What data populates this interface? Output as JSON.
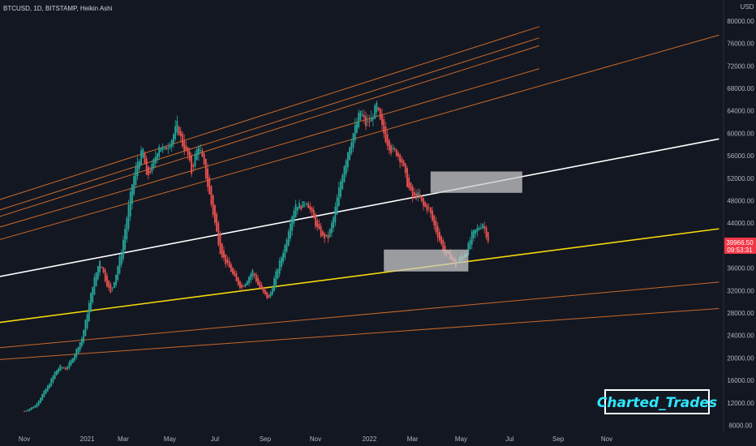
{
  "header": {
    "symbol": "BTCUSD, 1D, BITSTAMP, Heikin Ashi"
  },
  "currency": "USD",
  "current_price": {
    "value": "39966.50",
    "countdown": "09:53:31",
    "color": "#f23645"
  },
  "watermark": "Charted_Trades",
  "colors": {
    "up": "#26a69a",
    "down": "#ef5350",
    "bg": "#131722",
    "orange": "#c96a2a",
    "white": "#ffffff",
    "yellow": "#f5d90a",
    "zone": "#c9c9c9"
  },
  "chart_data": {
    "type": "candlestick",
    "chart_style": "Heikin Ashi",
    "ylim": [
      7500,
      81000
    ],
    "y_ticks": [
      "80000.00",
      "76000.00",
      "72000.00",
      "68000.00",
      "64000.00",
      "60000.00",
      "56000.00",
      "52000.00",
      "48000.00",
      "44000.00",
      "40000.00",
      "36000.00",
      "32000.00",
      "28000.00",
      "24000.00",
      "20000.00",
      "16000.00",
      "12000.00",
      "8000.00"
    ],
    "x_ticks": [
      "Nov",
      "2021",
      "Mar",
      "May",
      "Jul",
      "Sep",
      "Nov",
      "2022",
      "Mar",
      "May",
      "Jul",
      "Sep",
      "Nov"
    ],
    "price_path": [
      [
        0,
        10500
      ],
      [
        6,
        11500
      ],
      [
        10,
        13500
      ],
      [
        14,
        15500
      ],
      [
        17,
        17500
      ],
      [
        20,
        18500
      ],
      [
        23,
        18000
      ],
      [
        26,
        19500
      ],
      [
        29,
        21500
      ],
      [
        32,
        23500
      ],
      [
        35,
        28000
      ],
      [
        38,
        33000
      ],
      [
        42,
        37500
      ],
      [
        45,
        34000
      ],
      [
        48,
        31500
      ],
      [
        51,
        35000
      ],
      [
        54,
        39000
      ],
      [
        57,
        45000
      ],
      [
        60,
        51000
      ],
      [
        63,
        55000
      ],
      [
        66,
        57000
      ],
      [
        68,
        52000
      ],
      [
        71,
        54000
      ],
      [
        75,
        58000
      ],
      [
        78,
        57000
      ],
      [
        82,
        59000
      ],
      [
        85,
        61500
      ],
      [
        88,
        58000
      ],
      [
        91,
        56000
      ],
      [
        93,
        53000
      ],
      [
        95,
        56000
      ],
      [
        97,
        58000
      ],
      [
        100,
        54000
      ],
      [
        103,
        49000
      ],
      [
        106,
        44000
      ],
      [
        109,
        39000
      ],
      [
        112,
        37000
      ],
      [
        115,
        35500
      ],
      [
        118,
        33500
      ],
      [
        121,
        32500
      ],
      [
        124,
        34000
      ],
      [
        127,
        35500
      ],
      [
        130,
        33000
      ],
      [
        133,
        31500
      ],
      [
        136,
        30500
      ],
      [
        139,
        34000
      ],
      [
        142,
        37000
      ],
      [
        145,
        40000
      ],
      [
        148,
        44500
      ],
      [
        151,
        47500
      ],
      [
        154,
        47000
      ],
      [
        157,
        48000
      ],
      [
        160,
        45500
      ],
      [
        163,
        43000
      ],
      [
        166,
        41500
      ],
      [
        169,
        41500
      ],
      [
        172,
        45000
      ],
      [
        175,
        50000
      ],
      [
        178,
        54500
      ],
      [
        181,
        58000
      ],
      [
        184,
        61000
      ],
      [
        187,
        64000
      ],
      [
        190,
        61500
      ],
      [
        193,
        62500
      ],
      [
        196,
        65000
      ],
      [
        198,
        62000
      ],
      [
        201,
        59000
      ],
      [
        204,
        57000
      ],
      [
        207,
        56500
      ],
      [
        210,
        55000
      ],
      [
        213,
        51000
      ],
      [
        216,
        48500
      ],
      [
        219,
        49000
      ],
      [
        222,
        47000
      ],
      [
        225,
        46500
      ],
      [
        228,
        43500
      ],
      [
        231,
        41000
      ],
      [
        234,
        38500
      ],
      [
        237,
        38000
      ],
      [
        240,
        36500
      ],
      [
        243,
        38000
      ],
      [
        246,
        39000
      ],
      [
        249,
        42000
      ],
      [
        252,
        43000
      ],
      [
        255,
        44000
      ],
      [
        258,
        41000
      ]
    ],
    "lines": [
      {
        "color": "orange",
        "from": [
          -80,
          40000
        ],
        "to": [
          300,
          79000
        ]
      },
      {
        "color": "orange",
        "from": [
          -80,
          38200
        ],
        "to": [
          300,
          77000
        ]
      },
      {
        "color": "orange",
        "from": [
          -80,
          37100
        ],
        "to": [
          300,
          75600
        ]
      },
      {
        "color": "orange",
        "from": [
          -80,
          35800
        ],
        "to": [
          300,
          71500
        ]
      },
      {
        "color": "orange",
        "from": [
          -80,
          33800
        ],
        "to": [
          400,
          77500
        ]
      },
      {
        "color": "white",
        "from": [
          -80,
          29600
        ],
        "to": [
          400,
          59000
        ]
      },
      {
        "color": "yellow",
        "from": [
          -80,
          23000
        ],
        "to": [
          400,
          43000
        ]
      },
      {
        "color": "orange",
        "from": [
          -80,
          19500
        ],
        "to": [
          400,
          33500
        ]
      },
      {
        "color": "orange",
        "from": [
          -80,
          17900
        ],
        "to": [
          400,
          28800
        ]
      }
    ],
    "zones": [
      {
        "x": [
          226,
          277
        ],
        "y": [
          49400,
          53200
        ]
      },
      {
        "x": [
          200,
          247
        ],
        "y": [
          35400,
          39300
        ]
      }
    ]
  }
}
